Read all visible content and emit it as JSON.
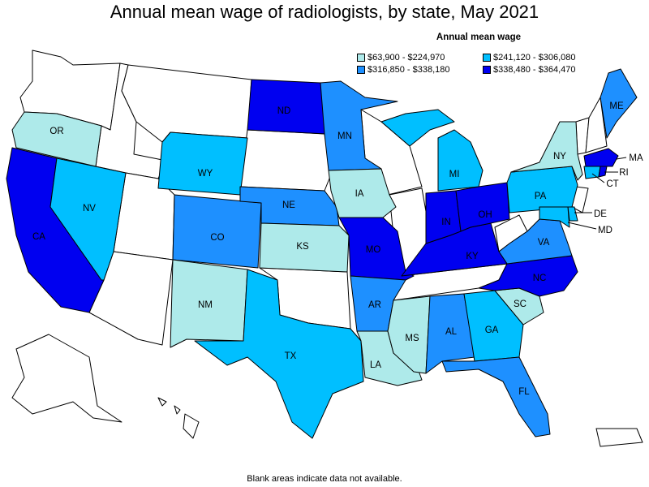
{
  "title": "Annual mean wage of radiologists, by state, May 2021",
  "legend": {
    "title": "Annual mean wage",
    "items": [
      {
        "label": "$63,900 - $224,970",
        "color": "#aeeaea"
      },
      {
        "label": "$241,120 - $306,080",
        "color": "#00bfff"
      },
      {
        "label": "$316,850 - $338,180",
        "color": "#1e90ff"
      },
      {
        "label": "$338,480 - $364,470",
        "color": "#0000f0"
      }
    ]
  },
  "footnote": "Blank areas indicate data not available.",
  "colors": {
    "border": "#000000",
    "no_data": "#ffffff"
  },
  "states": {
    "OR": {
      "bin": 0
    },
    "CA": {
      "bin": 3
    },
    "NV": {
      "bin": 1
    },
    "WY": {
      "bin": 1
    },
    "CO": {
      "bin": 2
    },
    "NM": {
      "bin": 0
    },
    "TX": {
      "bin": 1
    },
    "ND": {
      "bin": 3
    },
    "NE": {
      "bin": 2
    },
    "KS": {
      "bin": 0
    },
    "MN": {
      "bin": 2
    },
    "IA": {
      "bin": 0
    },
    "MO": {
      "bin": 3
    },
    "AR": {
      "bin": 2
    },
    "LA": {
      "bin": 0
    },
    "MS": {
      "bin": 0
    },
    "AL": {
      "bin": 2
    },
    "GA": {
      "bin": 1
    },
    "FL": {
      "bin": 2
    },
    "SC": {
      "bin": 0
    },
    "NC": {
      "bin": 3
    },
    "VA": {
      "bin": 2
    },
    "KY": {
      "bin": 3
    },
    "IN": {
      "bin": 3
    },
    "OH": {
      "bin": 3
    },
    "MI": {
      "bin": 1
    },
    "PA": {
      "bin": 1
    },
    "NY": {
      "bin": 0
    },
    "ME": {
      "bin": 2
    },
    "MA": {
      "bin": 3
    },
    "CT": {
      "bin": 1
    },
    "RI": {
      "bin": 3
    },
    "DE": {
      "bin": 1
    },
    "MD": {
      "bin": 1
    }
  },
  "labels": [
    "OR",
    "CA",
    "NV",
    "WY",
    "CO",
    "NM",
    "TX",
    "ND",
    "NE",
    "KS",
    "MN",
    "IA",
    "MO",
    "AR",
    "LA",
    "MS",
    "AL",
    "GA",
    "FL",
    "SC",
    "NC",
    "VA",
    "KY",
    "IN",
    "OH",
    "MI",
    "PA",
    "NY",
    "ME",
    "MA",
    "CT",
    "RI",
    "DE",
    "MD"
  ]
}
